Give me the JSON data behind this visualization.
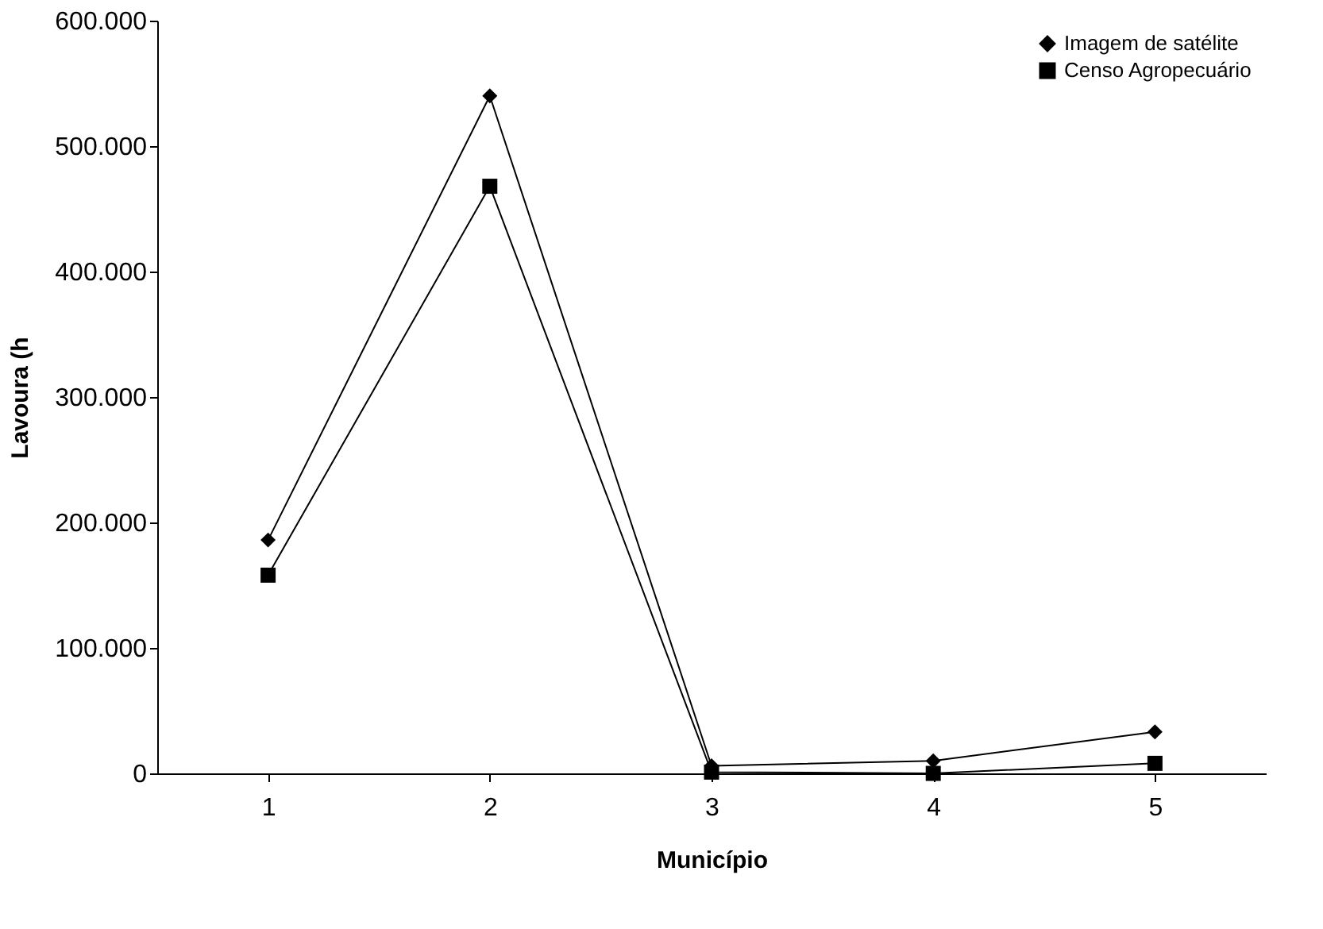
{
  "chart_data": {
    "type": "line",
    "xlabel": "Município",
    "ylabel": "Lavoura (h",
    "categories": [
      "1",
      "2",
      "3",
      "4",
      "5"
    ],
    "series": [
      {
        "name": "Imagem de satélite",
        "color": "#000000",
        "marker": "diamond",
        "values": [
          186000,
          540000,
          6000,
          10000,
          33000
        ]
      },
      {
        "name": "Censo Agropecuário",
        "color": "#000000",
        "marker": "square",
        "values": [
          158000,
          468000,
          1000,
          0,
          8000
        ]
      }
    ],
    "ylim": [
      0,
      600000
    ],
    "yticks": [
      {
        "value": 0,
        "label": "0"
      },
      {
        "value": 100000,
        "label": "100.000"
      },
      {
        "value": 200000,
        "label": "200.000"
      },
      {
        "value": 300000,
        "label": "300.000"
      },
      {
        "value": 400000,
        "label": "400.000"
      },
      {
        "value": 500000,
        "label": "500.000"
      },
      {
        "value": 600000,
        "label": "600.000"
      }
    ],
    "grid": false,
    "legend": "top right",
    "line_style": "solid"
  }
}
